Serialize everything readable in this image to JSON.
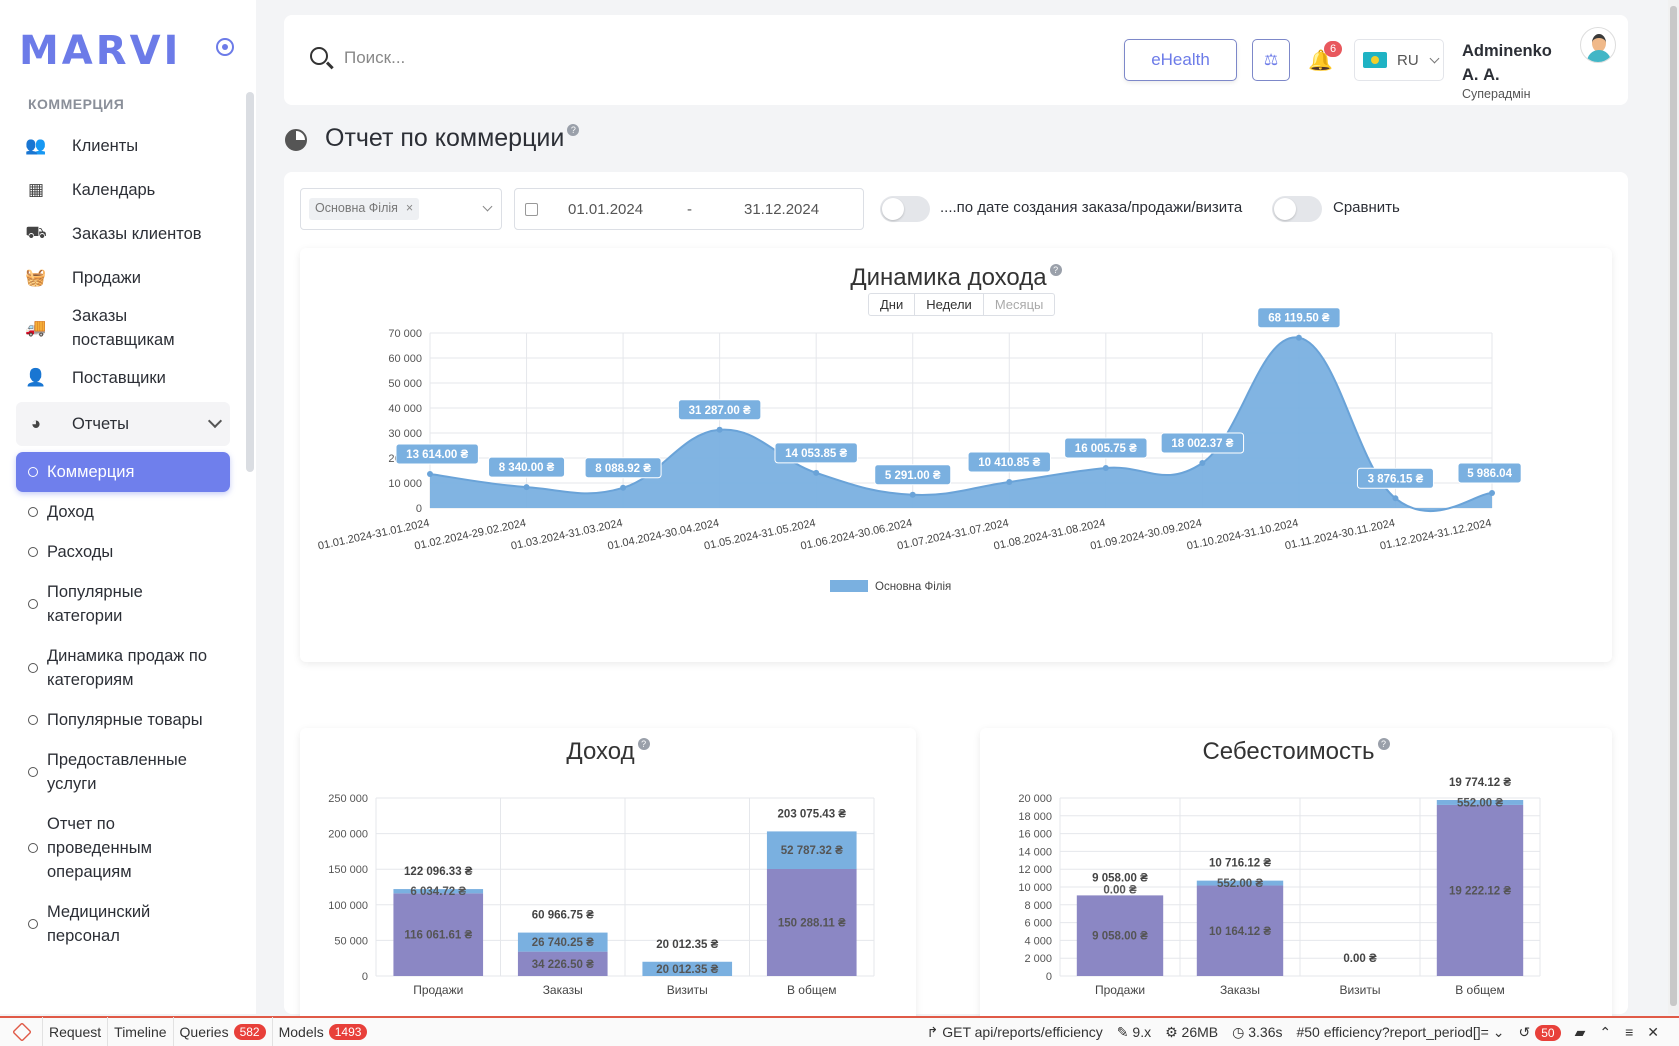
{
  "sidebar": {
    "logo": "MARVI",
    "section": "КОММЕРЦИЯ",
    "items": [
      {
        "label": "Клиенты",
        "icon": "users-icon"
      },
      {
        "label": "Календарь",
        "icon": "calendar-icon"
      },
      {
        "label": "Заказы клиентов",
        "icon": "orders-icon"
      },
      {
        "label": "Продажи",
        "icon": "basket-icon"
      },
      {
        "label": "Заказы поставщикам",
        "icon": "truck-icon"
      },
      {
        "label": "Поставщики",
        "icon": "supplier-icon"
      },
      {
        "label": "Отчеты",
        "icon": "pie-chart-icon"
      }
    ],
    "reports_sub": [
      "Коммерция",
      "Доход",
      "Расходы",
      "Популярные категории",
      "Динамика продаж по категориям",
      "Популярные товары",
      "Предоставленные услуги",
      "Отчет по проведенным операциям",
      "Медицинский персонал"
    ]
  },
  "header": {
    "search_placeholder": "Поиск...",
    "ehealth": "eHealth",
    "notifications": "6",
    "lang": "RU",
    "user_name": "Adminenko А. А.",
    "user_role": "Суперадмін"
  },
  "page": {
    "title": "Отчет по коммерции"
  },
  "filters": {
    "branch_chip": "Основна Філія",
    "date_from": "01.01.2024",
    "date_sep": "-",
    "date_to": "31.12.2024",
    "toggle1_label": "....по дате создания заказа/продажи/визита",
    "toggle2_label": "Сравнить"
  },
  "income_dynamics": {
    "title": "Динамика дохода",
    "period_tabs": [
      "Дни",
      "Недели",
      "Месяцы"
    ]
  },
  "chart_data": [
    {
      "type": "area",
      "title": "Динамика дохода",
      "categories": [
        "01.01.2024-31.01.2024",
        "01.02.2024-29.02.2024",
        "01.03.2024-31.03.2024",
        "01.04.2024-30.04.2024",
        "01.05.2024-31.05.2024",
        "01.06.2024-30.06.2024",
        "01.07.2024-31.07.2024",
        "01.08.2024-31.08.2024",
        "01.09.2024-30.09.2024",
        "01.10.2024-31.10.2024",
        "01.11.2024-30.11.2024",
        "01.12.2024-31.12.2024"
      ],
      "series": [
        {
          "name": "Основна Філія",
          "values": [
            13614.0,
            8340.0,
            8088.92,
            31287.0,
            14053.85,
            5291.0,
            10410.85,
            16005.75,
            18002.37,
            68119.5,
            3876.15,
            5986.04
          ]
        }
      ],
      "data_labels": [
        "13 614.00 ₴",
        "8 340.00 ₴",
        "8 088.92 ₴",
        "31 287.00 ₴",
        "14 053.85 ₴",
        "5 291.00 ₴",
        "10 410.85 ₴",
        "16 005.75 ₴",
        "18 002.37 ₴",
        "68 119.50 ₴",
        "3 876.15 ₴",
        "5 986.04"
      ],
      "yticks": [
        "0",
        "10 000",
        "20 000",
        "30 000",
        "40 000",
        "50 000",
        "60 000",
        "70 000"
      ],
      "ylim": [
        0,
        70000
      ],
      "grid": true,
      "legend": "bottom",
      "color": "#7ab0e0"
    },
    {
      "type": "bar",
      "stacked": true,
      "title": "Доход",
      "categories": [
        "Продажи",
        "Заказы",
        "Визиты",
        "В общем"
      ],
      "series": [
        {
          "values": [
            116061.61,
            34226.5,
            0,
            150288.11
          ],
          "labels": [
            "116 061.61 ₴",
            "34 226.50 ₴",
            "",
            "150 288.11 ₴"
          ],
          "color": "#8b87c4"
        },
        {
          "values": [
            6034.72,
            26740.25,
            20012.35,
            52787.32
          ],
          "labels": [
            "6 034.72 ₴",
            "26 740.25 ₴",
            "20 012.35 ₴",
            "52 787.32 ₴"
          ],
          "color": "#7ab0e0"
        }
      ],
      "totals": [
        "122 096.33 ₴",
        "60 966.75 ₴",
        "20 012.35 ₴",
        "203 075.43 ₴"
      ],
      "yticks": [
        "0",
        "50 000",
        "100 000",
        "150 000",
        "200 000",
        "250 000"
      ],
      "ylim": [
        0,
        250000
      ],
      "grid": true
    },
    {
      "type": "bar",
      "stacked": true,
      "title": "Себестоимость",
      "categories": [
        "Продажи",
        "Заказы",
        "Визиты",
        "В общем"
      ],
      "series": [
        {
          "values": [
            9058.0,
            10164.12,
            0,
            19222.12
          ],
          "labels": [
            "9 058.00 ₴",
            "10 164.12 ₴",
            "",
            "19 222.12 ₴"
          ],
          "color": "#8b87c4"
        },
        {
          "values": [
            0,
            552.0,
            0,
            552.0
          ],
          "labels": [
            "0.00 ₴",
            "552.00 ₴",
            "",
            "552.00 ₴"
          ],
          "color": "#7ab0e0"
        }
      ],
      "totals": [
        "9 058.00 ₴",
        "10 716.12 ₴",
        "0.00 ₴",
        "19 774.12 ₴"
      ],
      "yticks": [
        "0",
        "2 000",
        "4 000",
        "6 000",
        "8 000",
        "10 000",
        "12 000",
        "14 000",
        "16 000",
        "18 000",
        "20 000"
      ],
      "ylim": [
        0,
        20000
      ],
      "grid": true
    }
  ],
  "debugbar": {
    "tabs": [
      {
        "label": "Request"
      },
      {
        "label": "Timeline"
      },
      {
        "label": "Queries",
        "badge": "582"
      },
      {
        "label": "Models",
        "badge": "1493"
      }
    ],
    "request": "GET api/reports/efficiency",
    "version": "9.x",
    "memory": "26MB",
    "time": "3.36s",
    "route": "#50 efficiency?report_period[]=",
    "history_badge": "50"
  }
}
